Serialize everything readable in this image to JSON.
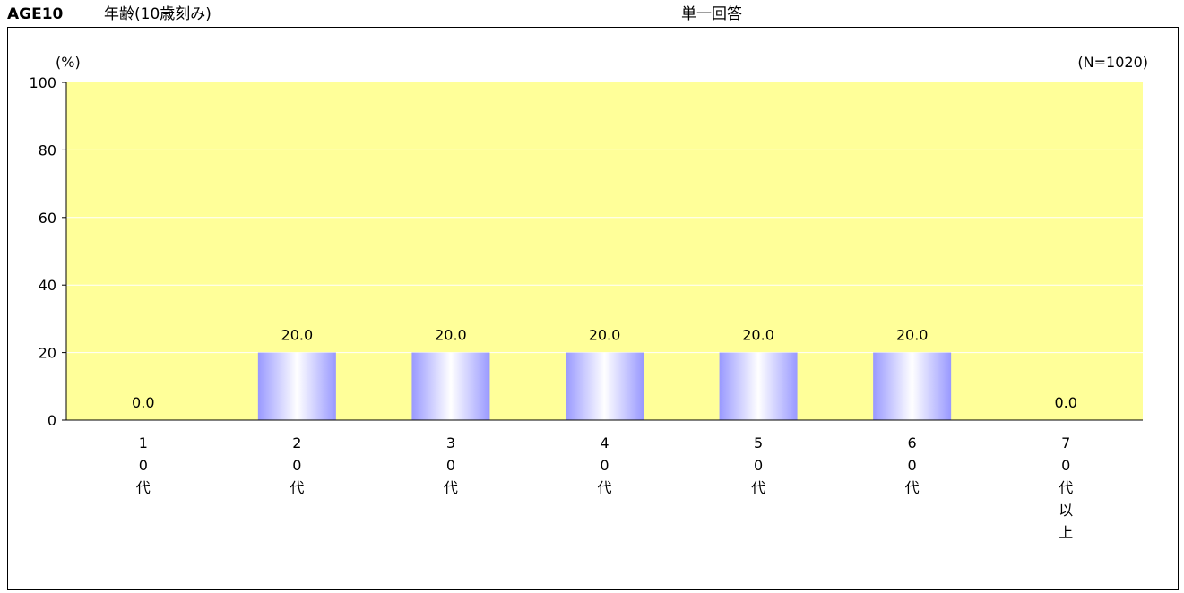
{
  "header": {
    "code": "AGE10",
    "title": "年齢(10歳刻み)",
    "answer_type": "単一回答"
  },
  "chart_data": {
    "type": "bar",
    "title": "年齢(10歳刻み)",
    "ylabel": "(%)",
    "n_label": "(N=1020)",
    "ylim": [
      0,
      100
    ],
    "yticks": [
      0,
      20,
      40,
      60,
      80,
      100
    ],
    "grid": true,
    "categories": [
      "10代",
      "20代",
      "30代",
      "40代",
      "50代",
      "60代",
      "70代以上"
    ],
    "values": [
      0.0,
      20.0,
      20.0,
      20.0,
      20.0,
      20.0,
      0.0
    ],
    "value_labels": [
      "0.0",
      "20.0",
      "20.0",
      "20.0",
      "20.0",
      "20.0",
      "0.0"
    ],
    "colors": {
      "plot_background": "#ffff99",
      "bar_edge": "#9999ff",
      "bar_center": "#ffffff",
      "gridline": "#ffffff"
    }
  }
}
